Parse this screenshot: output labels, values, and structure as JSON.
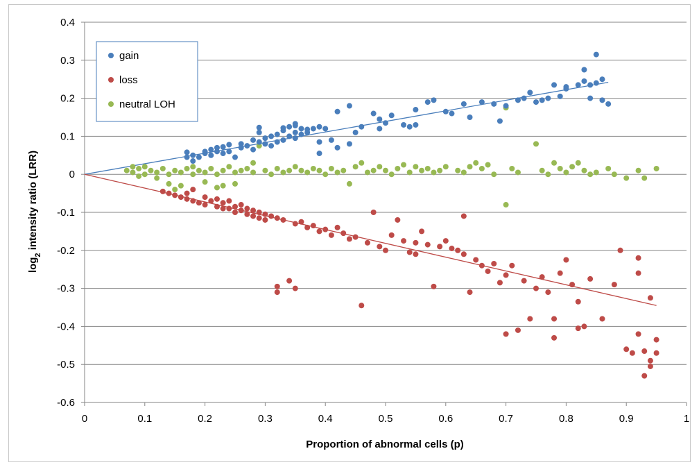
{
  "chart_data": {
    "type": "scatter",
    "xlabel": "Proportion of abnormal cells (p)",
    "ylabel_main": "log",
    "ylabel_sub": "2",
    "ylabel_rest": " intensity ratio (LRR)",
    "xlim": [
      0,
      1
    ],
    "ylim": [
      -0.6,
      0.4
    ],
    "x_ticks": [
      0,
      0.1,
      0.2,
      0.3,
      0.4,
      0.5,
      0.6,
      0.7,
      0.8,
      0.9,
      1
    ],
    "x_tick_labels": [
      "0",
      "0.1",
      "0.2",
      "0.3",
      "0.4",
      "0.5",
      "0.6",
      "0.7",
      "0.8",
      "0.9",
      "1"
    ],
    "y_ticks": [
      0.4,
      0.3,
      0.2,
      0.1,
      0,
      -0.1,
      -0.2,
      -0.3,
      -0.4,
      -0.5,
      -0.6
    ],
    "y_tick_labels": [
      "0.4",
      "0.3",
      "0.2",
      "0.1",
      "0",
      "-0.1",
      "-0.2",
      "-0.3",
      "-0.4",
      "-0.5",
      "-0.6"
    ],
    "grid": "horizontal",
    "legend_position": "top-left",
    "series": [
      {
        "name": "gain",
        "color": "#4a7ebb",
        "points": [
          [
            0.17,
            0.045
          ],
          [
            0.17,
            0.058
          ],
          [
            0.18,
            0.035
          ],
          [
            0.18,
            0.05
          ],
          [
            0.19,
            0.045
          ],
          [
            0.2,
            0.055
          ],
          [
            0.2,
            0.06
          ],
          [
            0.21,
            0.05
          ],
          [
            0.21,
            0.065
          ],
          [
            0.22,
            0.06
          ],
          [
            0.22,
            0.07
          ],
          [
            0.23,
            0.055
          ],
          [
            0.23,
            0.072
          ],
          [
            0.24,
            0.06
          ],
          [
            0.24,
            0.078
          ],
          [
            0.25,
            0.045
          ],
          [
            0.26,
            0.07
          ],
          [
            0.26,
            0.08
          ],
          [
            0.27,
            0.075
          ],
          [
            0.28,
            0.065
          ],
          [
            0.28,
            0.09
          ],
          [
            0.29,
            0.085
          ],
          [
            0.29,
            0.11
          ],
          [
            0.29,
            0.123
          ],
          [
            0.3,
            0.08
          ],
          [
            0.3,
            0.095
          ],
          [
            0.31,
            0.075
          ],
          [
            0.31,
            0.1
          ],
          [
            0.32,
            0.085
          ],
          [
            0.32,
            0.105
          ],
          [
            0.33,
            0.09
          ],
          [
            0.33,
            0.115
          ],
          [
            0.33,
            0.122
          ],
          [
            0.34,
            0.1
          ],
          [
            0.34,
            0.125
          ],
          [
            0.35,
            0.095
          ],
          [
            0.35,
            0.11
          ],
          [
            0.35,
            0.128
          ],
          [
            0.35,
            0.133
          ],
          [
            0.36,
            0.105
          ],
          [
            0.36,
            0.12
          ],
          [
            0.37,
            0.11
          ],
          [
            0.37,
            0.118
          ],
          [
            0.38,
            0.12
          ],
          [
            0.39,
            0.085
          ],
          [
            0.39,
            0.055
          ],
          [
            0.39,
            0.125
          ],
          [
            0.4,
            0.12
          ],
          [
            0.41,
            0.09
          ],
          [
            0.42,
            0.07
          ],
          [
            0.42,
            0.165
          ],
          [
            0.44,
            0.08
          ],
          [
            0.44,
            0.18
          ],
          [
            0.45,
            0.11
          ],
          [
            0.46,
            0.125
          ],
          [
            0.48,
            0.16
          ],
          [
            0.49,
            0.12
          ],
          [
            0.49,
            0.145
          ],
          [
            0.5,
            0.135
          ],
          [
            0.51,
            0.155
          ],
          [
            0.53,
            0.13
          ],
          [
            0.54,
            0.125
          ],
          [
            0.55,
            0.13
          ],
          [
            0.55,
            0.17
          ],
          [
            0.57,
            0.19
          ],
          [
            0.58,
            0.195
          ],
          [
            0.6,
            0.165
          ],
          [
            0.61,
            0.16
          ],
          [
            0.63,
            0.185
          ],
          [
            0.64,
            0.15
          ],
          [
            0.66,
            0.19
          ],
          [
            0.68,
            0.185
          ],
          [
            0.69,
            0.14
          ],
          [
            0.7,
            0.18
          ],
          [
            0.72,
            0.195
          ],
          [
            0.73,
            0.2
          ],
          [
            0.74,
            0.215
          ],
          [
            0.75,
            0.19
          ],
          [
            0.76,
            0.195
          ],
          [
            0.77,
            0.2
          ],
          [
            0.78,
            0.235
          ],
          [
            0.79,
            0.205
          ],
          [
            0.8,
            0.225
          ],
          [
            0.8,
            0.23
          ],
          [
            0.82,
            0.235
          ],
          [
            0.83,
            0.275
          ],
          [
            0.83,
            0.245
          ],
          [
            0.84,
            0.235
          ],
          [
            0.84,
            0.2
          ],
          [
            0.85,
            0.315
          ],
          [
            0.85,
            0.24
          ],
          [
            0.86,
            0.25
          ],
          [
            0.86,
            0.195
          ],
          [
            0.87,
            0.185
          ]
        ]
      },
      {
        "name": "loss",
        "color": "#be4b48",
        "points": [
          [
            0.13,
            -0.045
          ],
          [
            0.14,
            -0.05
          ],
          [
            0.15,
            -0.055
          ],
          [
            0.16,
            -0.06
          ],
          [
            0.17,
            -0.05
          ],
          [
            0.17,
            -0.065
          ],
          [
            0.18,
            -0.04
          ],
          [
            0.18,
            -0.07
          ],
          [
            0.19,
            -0.075
          ],
          [
            0.2,
            -0.06
          ],
          [
            0.2,
            -0.08
          ],
          [
            0.21,
            -0.07
          ],
          [
            0.22,
            -0.065
          ],
          [
            0.22,
            -0.085
          ],
          [
            0.23,
            -0.075
          ],
          [
            0.23,
            -0.09
          ],
          [
            0.24,
            -0.07
          ],
          [
            0.24,
            -0.09
          ],
          [
            0.25,
            -0.085
          ],
          [
            0.25,
            -0.1
          ],
          [
            0.26,
            -0.08
          ],
          [
            0.26,
            -0.095
          ],
          [
            0.27,
            -0.09
          ],
          [
            0.27,
            -0.105
          ],
          [
            0.28,
            -0.095
          ],
          [
            0.28,
            -0.11
          ],
          [
            0.29,
            -0.1
          ],
          [
            0.29,
            -0.115
          ],
          [
            0.3,
            -0.105
          ],
          [
            0.3,
            -0.12
          ],
          [
            0.31,
            -0.11
          ],
          [
            0.32,
            -0.115
          ],
          [
            0.32,
            -0.295
          ],
          [
            0.32,
            -0.31
          ],
          [
            0.33,
            -0.12
          ],
          [
            0.34,
            -0.28
          ],
          [
            0.35,
            -0.13
          ],
          [
            0.35,
            -0.3
          ],
          [
            0.36,
            -0.125
          ],
          [
            0.37,
            -0.14
          ],
          [
            0.38,
            -0.135
          ],
          [
            0.39,
            -0.15
          ],
          [
            0.4,
            -0.145
          ],
          [
            0.41,
            -0.16
          ],
          [
            0.42,
            -0.14
          ],
          [
            0.43,
            -0.155
          ],
          [
            0.44,
            -0.17
          ],
          [
            0.45,
            -0.165
          ],
          [
            0.46,
            -0.345
          ],
          [
            0.47,
            -0.18
          ],
          [
            0.48,
            -0.1
          ],
          [
            0.49,
            -0.19
          ],
          [
            0.5,
            -0.2
          ],
          [
            0.51,
            -0.16
          ],
          [
            0.52,
            -0.12
          ],
          [
            0.53,
            -0.175
          ],
          [
            0.54,
            -0.205
          ],
          [
            0.55,
            -0.18
          ],
          [
            0.55,
            -0.21
          ],
          [
            0.56,
            -0.15
          ],
          [
            0.57,
            -0.185
          ],
          [
            0.58,
            -0.295
          ],
          [
            0.59,
            -0.19
          ],
          [
            0.6,
            -0.175
          ],
          [
            0.61,
            -0.195
          ],
          [
            0.62,
            -0.2
          ],
          [
            0.63,
            -0.11
          ],
          [
            0.63,
            -0.21
          ],
          [
            0.64,
            -0.31
          ],
          [
            0.65,
            -0.225
          ],
          [
            0.66,
            -0.24
          ],
          [
            0.67,
            -0.255
          ],
          [
            0.68,
            -0.235
          ],
          [
            0.69,
            -0.285
          ],
          [
            0.7,
            -0.265
          ],
          [
            0.7,
            -0.42
          ],
          [
            0.71,
            -0.24
          ],
          [
            0.72,
            -0.41
          ],
          [
            0.73,
            -0.28
          ],
          [
            0.74,
            -0.38
          ],
          [
            0.75,
            -0.3
          ],
          [
            0.76,
            -0.27
          ],
          [
            0.77,
            -0.31
          ],
          [
            0.78,
            -0.38
          ],
          [
            0.78,
            -0.43
          ],
          [
            0.79,
            -0.26
          ],
          [
            0.8,
            -0.225
          ],
          [
            0.81,
            -0.29
          ],
          [
            0.82,
            -0.335
          ],
          [
            0.82,
            -0.405
          ],
          [
            0.83,
            -0.4
          ],
          [
            0.84,
            -0.275
          ],
          [
            0.86,
            -0.38
          ],
          [
            0.88,
            -0.29
          ],
          [
            0.89,
            -0.2
          ],
          [
            0.9,
            -0.46
          ],
          [
            0.91,
            -0.47
          ],
          [
            0.92,
            -0.26
          ],
          [
            0.92,
            -0.22
          ],
          [
            0.92,
            -0.42
          ],
          [
            0.93,
            -0.465
          ],
          [
            0.93,
            -0.53
          ],
          [
            0.94,
            -0.49
          ],
          [
            0.94,
            -0.505
          ],
          [
            0.94,
            -0.325
          ],
          [
            0.95,
            -0.435
          ],
          [
            0.95,
            -0.47
          ]
        ]
      },
      {
        "name": "neutral LOH",
        "color": "#98b954",
        "points": [
          [
            0.07,
            0.01
          ],
          [
            0.08,
            0.005
          ],
          [
            0.08,
            0.02
          ],
          [
            0.09,
            -0.005
          ],
          [
            0.09,
            0.015
          ],
          [
            0.1,
            0.0
          ],
          [
            0.1,
            0.02
          ],
          [
            0.11,
            0.01
          ],
          [
            0.12,
            0.005
          ],
          [
            0.12,
            -0.01
          ],
          [
            0.13,
            0.015
          ],
          [
            0.14,
            0.0
          ],
          [
            0.14,
            -0.025
          ],
          [
            0.15,
            0.01
          ],
          [
            0.15,
            -0.04
          ],
          [
            0.16,
            0.005
          ],
          [
            0.16,
            -0.03
          ],
          [
            0.17,
            0.015
          ],
          [
            0.18,
            0.0
          ],
          [
            0.18,
            0.02
          ],
          [
            0.19,
            0.01
          ],
          [
            0.2,
            0.005
          ],
          [
            0.2,
            -0.02
          ],
          [
            0.21,
            0.015
          ],
          [
            0.22,
            0.0
          ],
          [
            0.22,
            -0.035
          ],
          [
            0.23,
            0.01
          ],
          [
            0.23,
            -0.03
          ],
          [
            0.24,
            0.02
          ],
          [
            0.25,
            0.005
          ],
          [
            0.25,
            -0.025
          ],
          [
            0.26,
            0.01
          ],
          [
            0.27,
            0.015
          ],
          [
            0.28,
            0.005
          ],
          [
            0.28,
            0.03
          ],
          [
            0.29,
            0.075
          ],
          [
            0.3,
            0.01
          ],
          [
            0.31,
            0.0
          ],
          [
            0.32,
            0.015
          ],
          [
            0.33,
            0.005
          ],
          [
            0.34,
            0.01
          ],
          [
            0.35,
            0.02
          ],
          [
            0.36,
            0.01
          ],
          [
            0.37,
            0.005
          ],
          [
            0.38,
            0.015
          ],
          [
            0.39,
            0.01
          ],
          [
            0.4,
            0.0
          ],
          [
            0.41,
            0.015
          ],
          [
            0.42,
            0.005
          ],
          [
            0.43,
            0.01
          ],
          [
            0.44,
            -0.025
          ],
          [
            0.45,
            0.02
          ],
          [
            0.46,
            0.03
          ],
          [
            0.47,
            0.005
          ],
          [
            0.48,
            0.01
          ],
          [
            0.49,
            0.02
          ],
          [
            0.5,
            0.01
          ],
          [
            0.51,
            0.0
          ],
          [
            0.52,
            0.015
          ],
          [
            0.53,
            0.025
          ],
          [
            0.54,
            0.005
          ],
          [
            0.55,
            0.02
          ],
          [
            0.56,
            0.01
          ],
          [
            0.57,
            0.015
          ],
          [
            0.58,
            0.005
          ],
          [
            0.59,
            0.01
          ],
          [
            0.6,
            0.02
          ],
          [
            0.62,
            0.01
          ],
          [
            0.63,
            0.005
          ],
          [
            0.64,
            0.02
          ],
          [
            0.65,
            0.03
          ],
          [
            0.66,
            0.015
          ],
          [
            0.67,
            0.025
          ],
          [
            0.68,
            0.0
          ],
          [
            0.7,
            0.175
          ],
          [
            0.7,
            -0.08
          ],
          [
            0.71,
            0.015
          ],
          [
            0.72,
            0.005
          ],
          [
            0.75,
            0.08
          ],
          [
            0.76,
            0.01
          ],
          [
            0.77,
            0.0
          ],
          [
            0.78,
            0.03
          ],
          [
            0.79,
            0.015
          ],
          [
            0.8,
            0.005
          ],
          [
            0.81,
            0.02
          ],
          [
            0.82,
            0.03
          ],
          [
            0.83,
            0.01
          ],
          [
            0.84,
            0.0
          ],
          [
            0.85,
            0.005
          ],
          [
            0.87,
            0.015
          ],
          [
            0.88,
            0.0
          ],
          [
            0.9,
            -0.01
          ],
          [
            0.92,
            0.01
          ],
          [
            0.93,
            -0.01
          ],
          [
            0.95,
            0.015
          ]
        ]
      }
    ],
    "trendlines": [
      {
        "series": "gain",
        "color": "#4a7ebb",
        "from": [
          0,
          0
        ],
        "to": [
          0.87,
          0.242
        ]
      },
      {
        "series": "loss",
        "color": "#be4b48",
        "from": [
          0,
          0
        ],
        "to": [
          0.95,
          -0.345
        ]
      }
    ]
  }
}
